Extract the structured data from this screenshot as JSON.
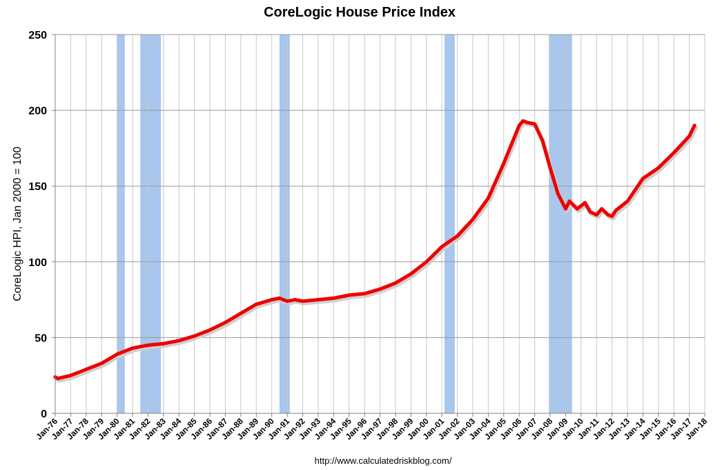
{
  "chart_data": {
    "type": "line",
    "title": "CoreLogic House Price Index",
    "ylabel": "CoreLogic HPI, Jan 2000 = 100",
    "xlabel": "",
    "source": "http://www.calculatedriskblog.com/",
    "ylim": [
      0,
      250
    ],
    "yticks": [
      0,
      50,
      100,
      150,
      200,
      250
    ],
    "xlim": [
      "1976-01",
      "2018-01"
    ],
    "xticks": [
      "Jan-76",
      "Jan-77",
      "Jan-78",
      "Jan-79",
      "Jan-80",
      "Jan-81",
      "Jan-82",
      "Jan-83",
      "Jan-84",
      "Jan-85",
      "Jan-86",
      "Jan-87",
      "Jan-88",
      "Jan-89",
      "Jan-90",
      "Jan-91",
      "Jan-92",
      "Jan-93",
      "Jan-94",
      "Jan-95",
      "Jan-96",
      "Jan-97",
      "Jan-98",
      "Jan-99",
      "Jan-00",
      "Jan-01",
      "Jan-02",
      "Jan-03",
      "Jan-04",
      "Jan-05",
      "Jan-06",
      "Jan-07",
      "Jan-08",
      "Jan-09",
      "Jan-10",
      "Jan-11",
      "Jan-12",
      "Jan-13",
      "Jan-14",
      "Jan-15",
      "Jan-16",
      "Jan-17",
      "Jan-18"
    ],
    "grid": true,
    "series_color": "#ee0000",
    "recession_color": "#a9c6ec",
    "recessions": [
      {
        "start": "1980-01",
        "end": "1980-07"
      },
      {
        "start": "1981-07",
        "end": "1982-11"
      },
      {
        "start": "1990-07",
        "end": "1991-03"
      },
      {
        "start": "2001-03",
        "end": "2001-11"
      },
      {
        "start": "2007-12",
        "end": "2009-06"
      }
    ],
    "series": [
      {
        "x": [
          "1976-01",
          "1976-03",
          "1977-01",
          "1978-01",
          "1979-01",
          "1980-01",
          "1981-01",
          "1982-01",
          "1983-01",
          "1984-01",
          "1985-01",
          "1986-01",
          "1987-01",
          "1988-01",
          "1989-01",
          "1990-01",
          "1990-07",
          "1991-01",
          "1991-07",
          "1992-01",
          "1993-01",
          "1994-01",
          "1995-01",
          "1996-01",
          "1997-01",
          "1998-01",
          "1999-01",
          "2000-01",
          "2001-01",
          "2002-01",
          "2003-01",
          "2004-01",
          "2005-01",
          "2006-01",
          "2006-04",
          "2006-07",
          "2007-01",
          "2007-07",
          "2008-01",
          "2008-07",
          "2009-01",
          "2009-04",
          "2009-10",
          "2010-04",
          "2010-08",
          "2011-01",
          "2011-05",
          "2011-10",
          "2012-01",
          "2012-04",
          "2013-01",
          "2014-01",
          "2015-01",
          "2016-01",
          "2017-01",
          "2017-05"
        ],
        "values": [
          24,
          23,
          25,
          29,
          33,
          39,
          43,
          45,
          46,
          48,
          51,
          55,
          60,
          66,
          72,
          75,
          76,
          74,
          75,
          74,
          75,
          76,
          78,
          79,
          82,
          86,
          92,
          100,
          110,
          117,
          128,
          142,
          165,
          190,
          193,
          192,
          191,
          180,
          162,
          145,
          135,
          140,
          135,
          139,
          133,
          131,
          135,
          131,
          130,
          134,
          140,
          155,
          162,
          172,
          183,
          190
        ]
      }
    ]
  }
}
